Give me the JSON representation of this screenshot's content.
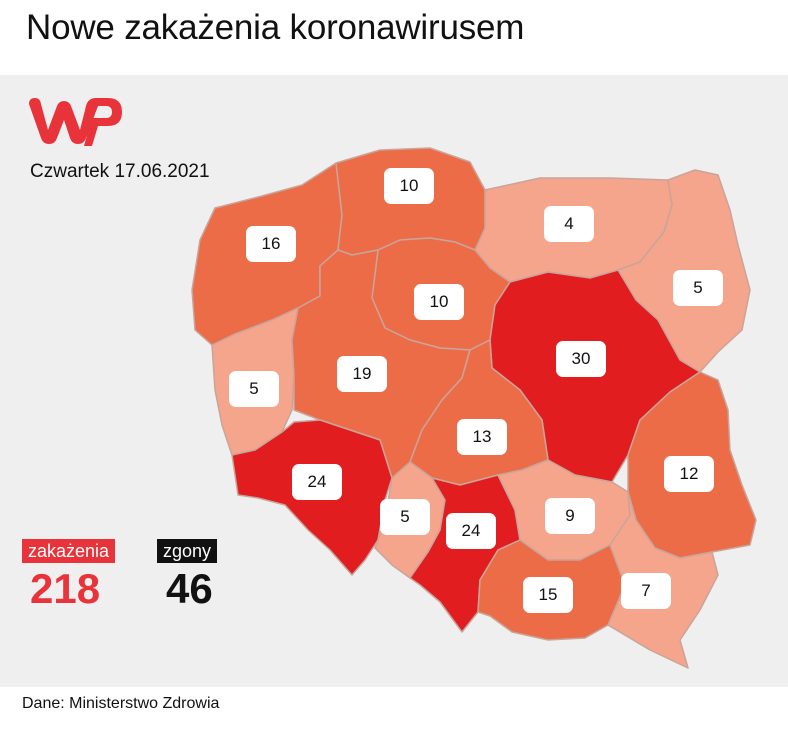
{
  "title": "Nowe zakażenia koronawirusem",
  "logo_text": "WP",
  "date": "Czwartek 17.06.2021",
  "colors": {
    "panel": "#efefef",
    "brand_red": "#e8333a",
    "level_low": "#f4a58c",
    "level_mid": "#ec6c48",
    "level_high": "#e11d20",
    "border": "#c9a49a"
  },
  "regions": [
    {
      "name": "zachodniopomorskie",
      "cases": "16",
      "level": "mid"
    },
    {
      "name": "pomorskie",
      "cases": "10",
      "level": "mid"
    },
    {
      "name": "warmińsko-mazurskie",
      "cases": "4",
      "level": "low"
    },
    {
      "name": "podlaskie",
      "cases": "5",
      "level": "low"
    },
    {
      "name": "kujawsko-pomorskie",
      "cases": "10",
      "level": "mid"
    },
    {
      "name": "mazowieckie",
      "cases": "30",
      "level": "high"
    },
    {
      "name": "lubuskie",
      "cases": "5",
      "level": "low"
    },
    {
      "name": "wielkopolskie",
      "cases": "19",
      "level": "mid"
    },
    {
      "name": "łódzkie",
      "cases": "13",
      "level": "mid"
    },
    {
      "name": "lubelskie",
      "cases": "12",
      "level": "mid"
    },
    {
      "name": "dolnośląskie",
      "cases": "24",
      "level": "high"
    },
    {
      "name": "opolskie",
      "cases": "5",
      "level": "low"
    },
    {
      "name": "śląskie",
      "cases": "24",
      "level": "high"
    },
    {
      "name": "świętokrzyskie",
      "cases": "9",
      "level": "low"
    },
    {
      "name": "małopolskie",
      "cases": "15",
      "level": "mid"
    },
    {
      "name": "podkarpackie",
      "cases": "7",
      "level": "low"
    }
  ],
  "summary": {
    "infections_label": "zakażenia",
    "infections_value": "218",
    "deaths_label": "zgony",
    "deaths_value": "46"
  },
  "source": "Dane: Ministerstwo Zdrowia"
}
